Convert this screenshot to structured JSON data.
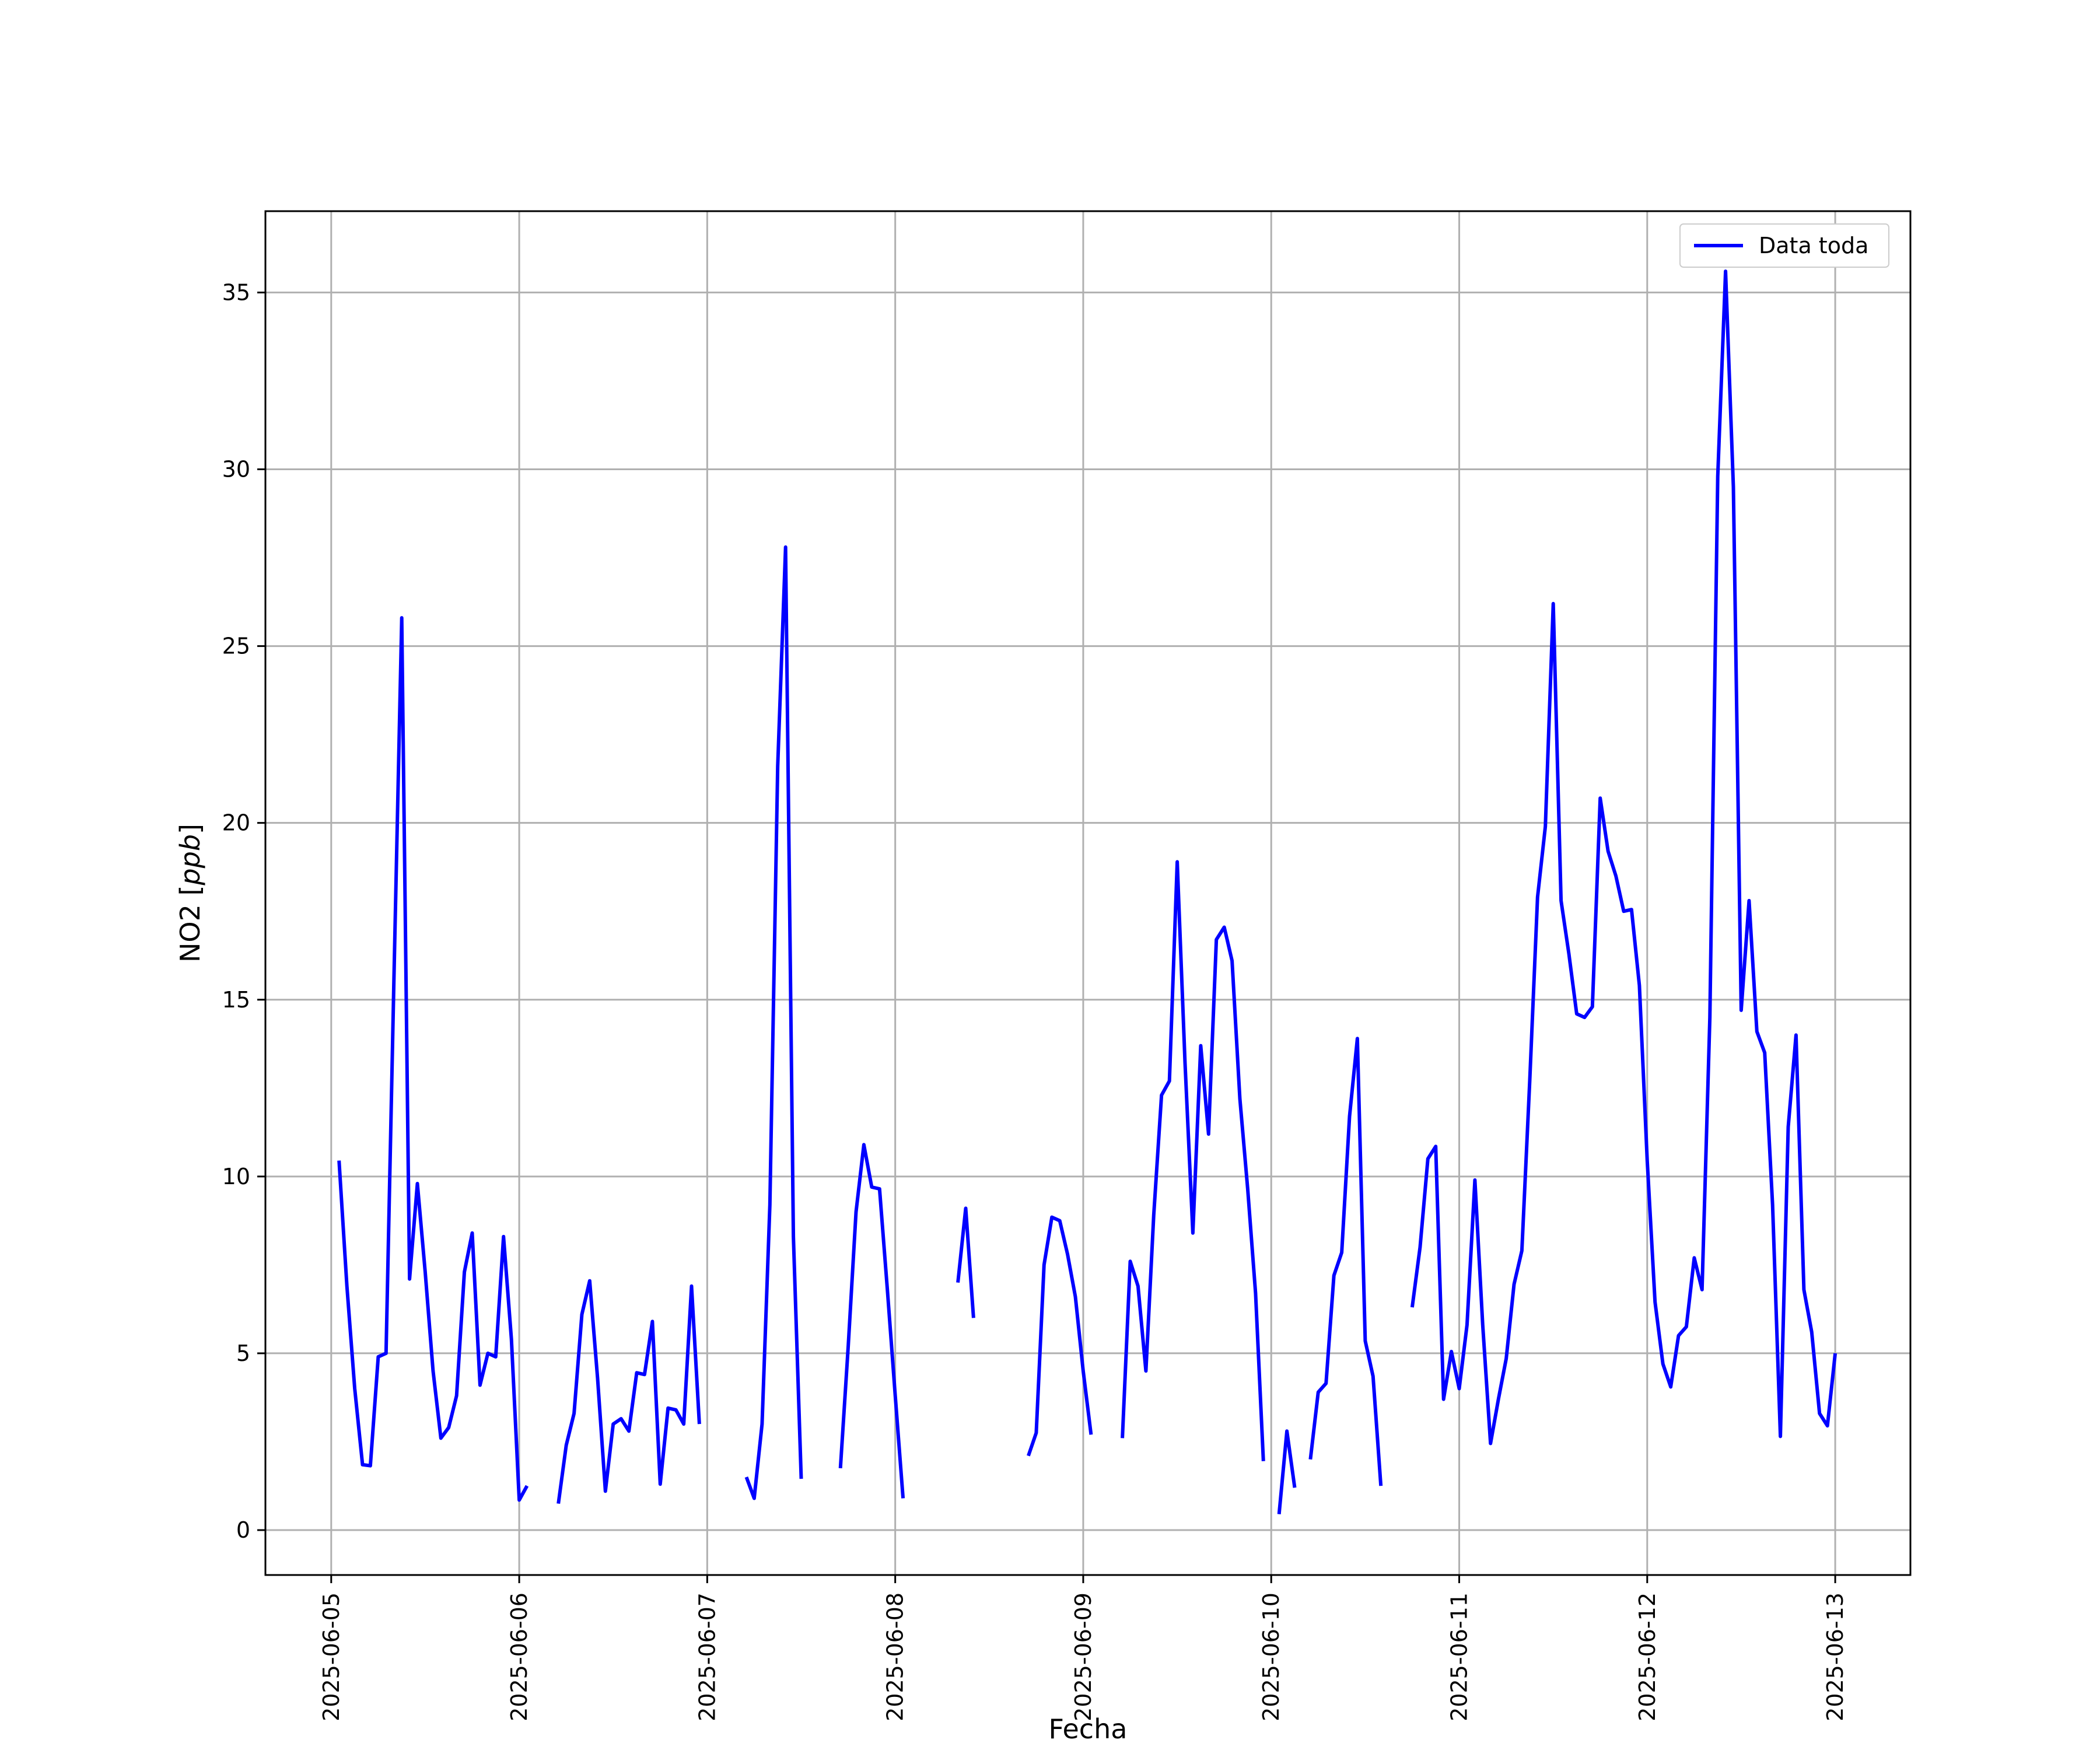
{
  "chart_data": {
    "type": "line",
    "title": "",
    "xlabel": "Fecha",
    "ylabel_main": "NO2 [",
    "ylabel_unit": "ppb",
    "ylabel_close": "]",
    "x_tick_labels": [
      "2025-06-05",
      "2025-06-06",
      "2025-06-07",
      "2025-06-08",
      "2025-06-09",
      "2025-06-10",
      "2025-06-11",
      "2025-06-12",
      "2025-06-13"
    ],
    "y_ticks": [
      0,
      5,
      10,
      15,
      20,
      25,
      30,
      35
    ],
    "xlim_days": [
      -0.35,
      8.4
    ],
    "ylim": [
      -1.27,
      37.3
    ],
    "grid": true,
    "legend_position": "top-right",
    "colors": {
      "line": "#0000ff",
      "grid": "#b0b0b0",
      "axes": "#000000"
    },
    "series": [
      {
        "name": "Data toda",
        "x": [
          "2025-06-05 01:00",
          "2025-06-05 02:00",
          "2025-06-05 03:00",
          "2025-06-05 04:00",
          "2025-06-05 05:00",
          "2025-06-05 06:00",
          "2025-06-05 07:00",
          "2025-06-05 08:00",
          "2025-06-05 09:00",
          "2025-06-05 10:00",
          "2025-06-05 11:00",
          "2025-06-05 12:00",
          "2025-06-05 13:00",
          "2025-06-05 14:00",
          "2025-06-05 15:00",
          "2025-06-05 16:00",
          "2025-06-05 17:00",
          "2025-06-05 18:00",
          "2025-06-05 19:00",
          "2025-06-05 20:00",
          "2025-06-05 21:00",
          "2025-06-05 22:00",
          "2025-06-05 23:00",
          "2025-06-06 00:00",
          "2025-06-06 01:00",
          "2025-06-06 05:00",
          "2025-06-06 06:00",
          "2025-06-06 07:00",
          "2025-06-06 08:00",
          "2025-06-06 09:00",
          "2025-06-06 10:00",
          "2025-06-06 11:00",
          "2025-06-06 12:00",
          "2025-06-06 13:00",
          "2025-06-06 14:00",
          "2025-06-06 15:00",
          "2025-06-06 16:00",
          "2025-06-06 17:00",
          "2025-06-06 18:00",
          "2025-06-06 19:00",
          "2025-06-06 20:00",
          "2025-06-06 21:00",
          "2025-06-06 22:00",
          "2025-06-06 23:00",
          "2025-06-07 05:00",
          "2025-06-07 06:00",
          "2025-06-07 07:00",
          "2025-06-07 08:00",
          "2025-06-07 09:00",
          "2025-06-07 10:00",
          "2025-06-07 11:00",
          "2025-06-07 12:00",
          "2025-06-07 17:00",
          "2025-06-07 18:00",
          "2025-06-07 19:00",
          "2025-06-07 20:00",
          "2025-06-07 21:00",
          "2025-06-07 22:00",
          "2025-06-07 23:00",
          "2025-06-08 00:00",
          "2025-06-08 01:00",
          "2025-06-08 08:00",
          "2025-06-08 09:00",
          "2025-06-08 10:00",
          "2025-06-08 17:00",
          "2025-06-08 18:00",
          "2025-06-08 19:00",
          "2025-06-08 20:00",
          "2025-06-08 21:00",
          "2025-06-08 22:00",
          "2025-06-08 23:00",
          "2025-06-09 00:00",
          "2025-06-09 01:00",
          "2025-06-09 05:00",
          "2025-06-09 06:00",
          "2025-06-09 07:00",
          "2025-06-09 08:00",
          "2025-06-09 09:00",
          "2025-06-09 10:00",
          "2025-06-09 11:00",
          "2025-06-09 12:00",
          "2025-06-09 13:00",
          "2025-06-09 14:00",
          "2025-06-09 15:00",
          "2025-06-09 16:00",
          "2025-06-09 17:00",
          "2025-06-09 18:00",
          "2025-06-09 19:00",
          "2025-06-09 20:00",
          "2025-06-09 21:00",
          "2025-06-09 22:00",
          "2025-06-09 23:00",
          "2025-06-10 01:00",
          "2025-06-10 02:00",
          "2025-06-10 03:00",
          "2025-06-10 05:00",
          "2025-06-10 06:00",
          "2025-06-10 07:00",
          "2025-06-10 08:00",
          "2025-06-10 09:00",
          "2025-06-10 10:00",
          "2025-06-10 11:00",
          "2025-06-10 12:00",
          "2025-06-10 13:00",
          "2025-06-10 14:00",
          "2025-06-10 18:00",
          "2025-06-10 19:00",
          "2025-06-10 20:00",
          "2025-06-10 21:00",
          "2025-06-10 22:00",
          "2025-06-10 23:00",
          "2025-06-11 00:00",
          "2025-06-11 01:00",
          "2025-06-11 02:00",
          "2025-06-11 03:00",
          "2025-06-11 04:00",
          "2025-06-11 05:00",
          "2025-06-11 06:00",
          "2025-06-11 07:00",
          "2025-06-11 08:00",
          "2025-06-11 09:00",
          "2025-06-11 10:00",
          "2025-06-11 11:00",
          "2025-06-11 12:00",
          "2025-06-11 13:00",
          "2025-06-11 14:00",
          "2025-06-11 15:00",
          "2025-06-11 16:00",
          "2025-06-11 17:00",
          "2025-06-11 18:00",
          "2025-06-11 19:00",
          "2025-06-11 20:00",
          "2025-06-11 21:00",
          "2025-06-11 22:00",
          "2025-06-11 23:00",
          "2025-06-12 00:00",
          "2025-06-12 01:00",
          "2025-06-12 02:00",
          "2025-06-12 03:00",
          "2025-06-12 04:00",
          "2025-06-12 05:00",
          "2025-06-12 06:00",
          "2025-06-12 07:00",
          "2025-06-12 08:00",
          "2025-06-12 09:00",
          "2025-06-12 10:00",
          "2025-06-12 11:00",
          "2025-06-12 12:00",
          "2025-06-12 13:00",
          "2025-06-12 14:00",
          "2025-06-12 15:00",
          "2025-06-12 16:00",
          "2025-06-12 17:00",
          "2025-06-12 18:00",
          "2025-06-12 19:00",
          "2025-06-12 20:00",
          "2025-06-12 21:00",
          "2025-06-12 22:00",
          "2025-06-12 23:00",
          "2025-06-13 00:00"
        ],
        "values": [
          10.45,
          6.9,
          4.0,
          1.85,
          1.82,
          4.9,
          5.0,
          15.5,
          25.8,
          7.1,
          9.8,
          7.3,
          4.5,
          2.6,
          2.9,
          3.8,
          7.3,
          8.4,
          4.1,
          5.0,
          4.9,
          8.3,
          5.4,
          0.85,
          1.25,
          0.75,
          2.4,
          3.3,
          6.1,
          7.05,
          4.3,
          1.1,
          3.0,
          3.15,
          2.8,
          4.45,
          4.4,
          5.9,
          1.3,
          3.45,
          3.4,
          3.0,
          6.9,
          3.0,
          1.5,
          0.9,
          3.0,
          9.2,
          21.6,
          27.8,
          8.3,
          1.45,
          1.75,
          5.2,
          9.0,
          10.9,
          9.7,
          9.65,
          6.8,
          3.8,
          0.9,
          7.0,
          9.1,
          6.0,
          2.1,
          2.75,
          7.5,
          8.85,
          8.75,
          7.8,
          6.6,
          4.5,
          2.7,
          2.6,
          7.6,
          6.9,
          4.5,
          8.9,
          12.3,
          12.7,
          18.9,
          13.2,
          8.4,
          13.7,
          11.2,
          16.7,
          17.05,
          16.1,
          12.2,
          9.65,
          6.7,
          1.95,
          0.45,
          2.8,
          1.2,
          2.0,
          3.9,
          4.15,
          7.2,
          7.85,
          11.7,
          13.9,
          5.35,
          4.35,
          1.25,
          6.3,
          8.0,
          10.5,
          10.85,
          3.7,
          5.05,
          4.0,
          5.8,
          9.9,
          5.8,
          2.45,
          3.7,
          4.85,
          6.95,
          7.9,
          12.7,
          17.9,
          19.9,
          26.2,
          17.8,
          16.3,
          14.6,
          14.5,
          14.8,
          20.7,
          19.2,
          18.5,
          17.5,
          17.55,
          15.4,
          10.45,
          6.45,
          4.7,
          4.05,
          5.5,
          5.75,
          7.7,
          6.8,
          14.5,
          29.8,
          35.6,
          29.5,
          14.7,
          17.8,
          14.1,
          13.5,
          9.2,
          2.65,
          11.4,
          14.0,
          6.8,
          5.6,
          3.3,
          2.95,
          5.0
        ]
      }
    ]
  }
}
